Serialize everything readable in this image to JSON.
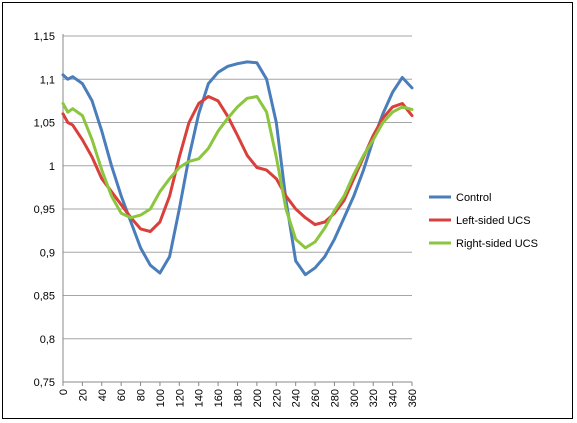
{
  "chart_data": {
    "type": "line",
    "title": "",
    "xlabel": "",
    "ylabel": "",
    "xlim": [
      0,
      360
    ],
    "ylim": [
      0.75,
      1.15
    ],
    "x_ticks": [
      "0",
      "20",
      "40",
      "60",
      "80",
      "100",
      "120",
      "140",
      "160",
      "180",
      "200",
      "220",
      "240",
      "260",
      "280",
      "300",
      "320",
      "340",
      "360"
    ],
    "y_ticks": [
      "0,75",
      "0,8",
      "0,85",
      "0,9",
      "0,95",
      "1",
      "1,05",
      "1,1",
      "1,15"
    ],
    "grid": "horizontal",
    "legend_position": "right",
    "series": [
      {
        "name": "Control",
        "color": "#4A7EBB",
        "points": [
          [
            0,
            1.105
          ],
          [
            5,
            1.1
          ],
          [
            10,
            1.103
          ],
          [
            20,
            1.095
          ],
          [
            30,
            1.075
          ],
          [
            40,
            1.04
          ],
          [
            50,
            1.0
          ],
          [
            60,
            0.965
          ],
          [
            70,
            0.935
          ],
          [
            80,
            0.905
          ],
          [
            90,
            0.885
          ],
          [
            100,
            0.876
          ],
          [
            110,
            0.895
          ],
          [
            120,
            0.95
          ],
          [
            130,
            1.01
          ],
          [
            140,
            1.06
          ],
          [
            150,
            1.095
          ],
          [
            160,
            1.108
          ],
          [
            170,
            1.115
          ],
          [
            180,
            1.118
          ],
          [
            190,
            1.12
          ],
          [
            200,
            1.119
          ],
          [
            210,
            1.1
          ],
          [
            220,
            1.05
          ],
          [
            230,
            0.96
          ],
          [
            240,
            0.89
          ],
          [
            250,
            0.874
          ],
          [
            260,
            0.882
          ],
          [
            270,
            0.895
          ],
          [
            280,
            0.915
          ],
          [
            290,
            0.94
          ],
          [
            300,
            0.965
          ],
          [
            310,
            0.995
          ],
          [
            320,
            1.03
          ],
          [
            330,
            1.06
          ],
          [
            340,
            1.085
          ],
          [
            350,
            1.102
          ],
          [
            360,
            1.09
          ]
        ]
      },
      {
        "name": "Left-sided UCS",
        "color": "#D9403B",
        "points": [
          [
            0,
            1.06
          ],
          [
            5,
            1.05
          ],
          [
            10,
            1.047
          ],
          [
            20,
            1.03
          ],
          [
            30,
            1.01
          ],
          [
            40,
            0.985
          ],
          [
            50,
            0.97
          ],
          [
            60,
            0.955
          ],
          [
            70,
            0.94
          ],
          [
            80,
            0.927
          ],
          [
            90,
            0.924
          ],
          [
            100,
            0.935
          ],
          [
            110,
            0.965
          ],
          [
            120,
            1.01
          ],
          [
            130,
            1.05
          ],
          [
            140,
            1.072
          ],
          [
            150,
            1.08
          ],
          [
            160,
            1.075
          ],
          [
            170,
            1.057
          ],
          [
            180,
            1.035
          ],
          [
            190,
            1.012
          ],
          [
            200,
            0.998
          ],
          [
            210,
            0.995
          ],
          [
            220,
            0.985
          ],
          [
            230,
            0.965
          ],
          [
            240,
            0.95
          ],
          [
            250,
            0.94
          ],
          [
            260,
            0.932
          ],
          [
            270,
            0.935
          ],
          [
            280,
            0.945
          ],
          [
            290,
            0.96
          ],
          [
            300,
            0.985
          ],
          [
            310,
            1.01
          ],
          [
            320,
            1.035
          ],
          [
            330,
            1.055
          ],
          [
            340,
            1.068
          ],
          [
            350,
            1.072
          ],
          [
            360,
            1.058
          ]
        ]
      },
      {
        "name": "Right-sided UCS",
        "color": "#8CC63F",
        "points": [
          [
            0,
            1.072
          ],
          [
            5,
            1.062
          ],
          [
            10,
            1.066
          ],
          [
            20,
            1.058
          ],
          [
            30,
            1.03
          ],
          [
            40,
            0.995
          ],
          [
            50,
            0.965
          ],
          [
            60,
            0.945
          ],
          [
            70,
            0.94
          ],
          [
            80,
            0.943
          ],
          [
            90,
            0.95
          ],
          [
            100,
            0.97
          ],
          [
            110,
            0.985
          ],
          [
            120,
            0.998
          ],
          [
            130,
            1.005
          ],
          [
            140,
            1.008
          ],
          [
            150,
            1.02
          ],
          [
            160,
            1.04
          ],
          [
            170,
            1.055
          ],
          [
            180,
            1.068
          ],
          [
            190,
            1.078
          ],
          [
            200,
            1.08
          ],
          [
            210,
            1.062
          ],
          [
            220,
            1.01
          ],
          [
            230,
            0.95
          ],
          [
            240,
            0.915
          ],
          [
            250,
            0.905
          ],
          [
            260,
            0.912
          ],
          [
            270,
            0.928
          ],
          [
            280,
            0.948
          ],
          [
            290,
            0.965
          ],
          [
            300,
            0.99
          ],
          [
            310,
            1.012
          ],
          [
            320,
            1.03
          ],
          [
            330,
            1.05
          ],
          [
            340,
            1.062
          ],
          [
            350,
            1.068
          ],
          [
            360,
            1.065
          ]
        ]
      }
    ]
  }
}
